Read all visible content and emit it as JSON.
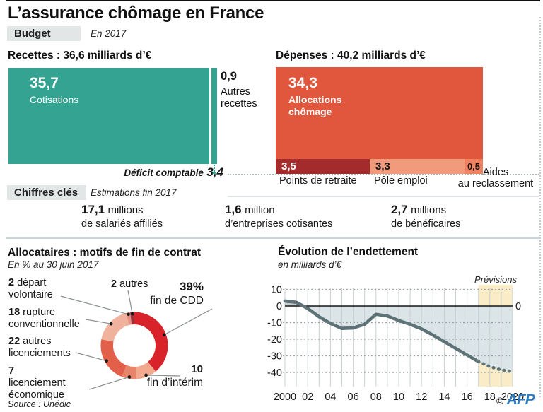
{
  "header": {
    "title": "L’assurance chômage en France",
    "section_budget": "Budget",
    "budget_period": "En 2017"
  },
  "budget": {
    "recettes": {
      "title": "Recettes : 36,6 milliards d’€",
      "cotisations_value": "35,7",
      "cotisations_label": "Cotisations",
      "autres_value": "0,9",
      "autres_label": "Autres recettes",
      "deficit_label": "Déficit comptable",
      "deficit_value": "3,4",
      "color_main": "#35a391"
    },
    "depenses": {
      "title": "Dépenses : 40,2 milliards d’€",
      "allocations_value": "34,3",
      "allocations_label": "Allocations chômage",
      "retraite_value": "3,5",
      "retraite_label": "Points de retraite",
      "pole_value": "3,3",
      "pole_label": "Pôle emploi",
      "aides_value": "0,5",
      "aides_label_line1": "Aides",
      "aides_label_line2": "au reclassement",
      "color_main": "#e0573e",
      "color_retraite": "#a42b2b",
      "color_pole": "#f19a7c",
      "color_aides": "#ee8261"
    }
  },
  "chiffres_cles": {
    "section_label": "Chiffres clés",
    "subtitle": "Estimations fin 2017",
    "stats": [
      {
        "value": "17,1",
        "unit": "millions",
        "label": "de salariés affiliés"
      },
      {
        "value": "1,6",
        "unit": "million",
        "label": "d’entreprises cotisantes"
      },
      {
        "value": "2,7",
        "unit": "millions",
        "label": "de bénéficaires"
      }
    ]
  },
  "chart_data": [
    {
      "type": "pie",
      "title": "Allocataires : motifs de fin de contrat",
      "subtitle": "En % au 30 juin 2017",
      "unit": "%",
      "slices": [
        {
          "label": "fin de CDD",
          "value": 39,
          "display": "39%",
          "color": "#d8232a"
        },
        {
          "label": "fin d’intérim",
          "value": 10,
          "display": "10",
          "color": "#f3a98e"
        },
        {
          "label": "licenciement économique",
          "value": 7,
          "display": "7",
          "color": "#e8846a"
        },
        {
          "label": "autres licenciements",
          "value": 22,
          "display": "22",
          "color": "#e25f49"
        },
        {
          "label": "rupture conventionnelle",
          "value": 18,
          "display": "18",
          "color": "#f0b29d"
        },
        {
          "label": "départ volontaire",
          "value": 2,
          "display": "2",
          "color": "#e69184"
        },
        {
          "label": "autres",
          "value": 2,
          "display": "2",
          "color": "#9e3236"
        }
      ]
    },
    {
      "type": "line",
      "title": "Évolution de l’endettement",
      "subtitle": "en milliards d’€",
      "annotation": "Prévisions",
      "x_ticks": [
        "2000",
        "02",
        "04",
        "06",
        "08",
        "10",
        "12",
        "14",
        "16",
        "18",
        "2020"
      ],
      "y_ticks": [
        "10",
        "0",
        "-10",
        "-20",
        "-30",
        "-40"
      ],
      "y_right_label": "0",
      "xlim": [
        2000,
        2020
      ],
      "ylim": [
        -48,
        11
      ],
      "grid": true,
      "forecast_band": {
        "from": 2017,
        "to": 2020,
        "color": "#f9ecc6"
      },
      "line_color": "#5e7378",
      "fill_below_color": "#dbe5e8",
      "fill_above_color": "#c7cccf",
      "series": [
        {
          "name": "Endettement",
          "style": "solid",
          "x": [
            2000,
            2001,
            2002,
            2003,
            2004,
            2005,
            2006,
            2007,
            2008,
            2009,
            2010,
            2011,
            2012,
            2013,
            2014,
            2015,
            2016,
            2017
          ],
          "y": [
            3,
            2.2,
            -1.5,
            -6.5,
            -10.5,
            -13.5,
            -13.2,
            -11,
            -5,
            -6,
            -8.8,
            -11,
            -13.8,
            -17.5,
            -21.5,
            -25.5,
            -29.5,
            -33.5
          ]
        },
        {
          "name": "Prévisions",
          "style": "dotted",
          "x": [
            2017,
            2018,
            2019,
            2020
          ],
          "y": [
            -33.5,
            -36.5,
            -38.5,
            -39.5
          ]
        }
      ]
    }
  ],
  "footer": {
    "source": "Source : Unédic",
    "copyright": "©",
    "credit": "AFP"
  }
}
